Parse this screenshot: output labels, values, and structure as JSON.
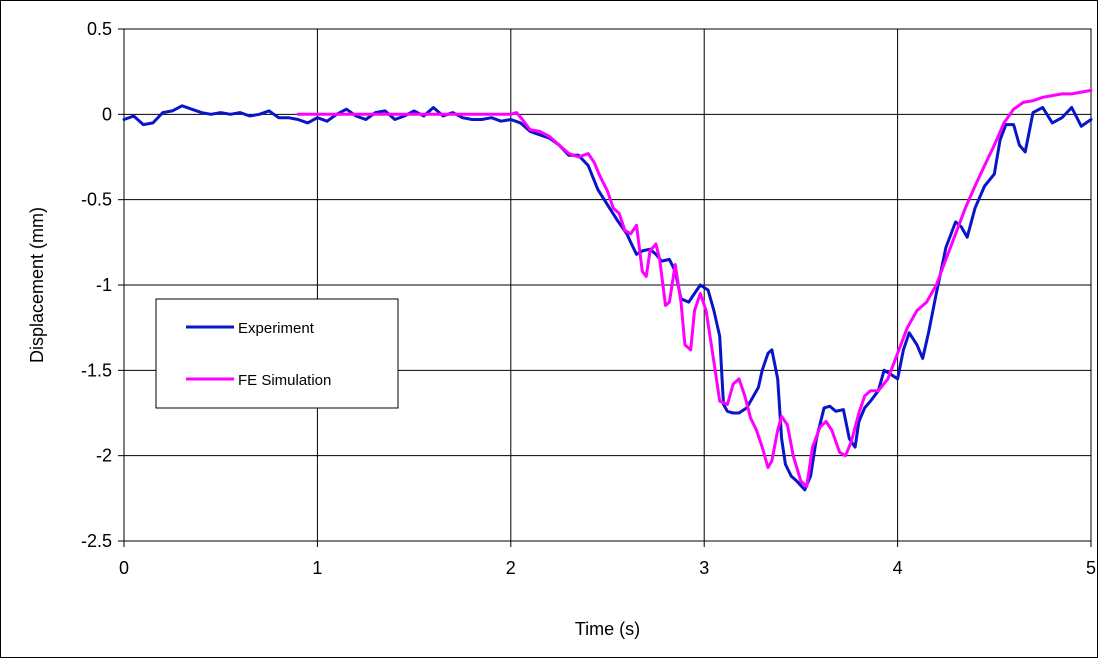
{
  "chart_data": {
    "type": "line",
    "title": "",
    "xlabel": "Time (s)",
    "ylabel": "Displacement (mm)",
    "xlim": [
      0,
      5
    ],
    "ylim": [
      -2.5,
      0.5
    ],
    "x_ticks": [
      0,
      1,
      2,
      3,
      4,
      5
    ],
    "x_tick_labels": [
      "0",
      "1",
      "2",
      "3",
      "4",
      "5"
    ],
    "y_ticks": [
      0.5,
      0,
      -0.5,
      -1,
      -1.5,
      -2,
      -2.5
    ],
    "y_tick_labels": [
      "0.5",
      "0",
      "-0.5",
      "-1",
      "-1.5",
      "-2",
      "-2.5"
    ],
    "grid": true,
    "legend_position": "center-left",
    "series": [
      {
        "name": "Experiment",
        "color": "#0a14c8",
        "x": [
          0.0,
          0.05,
          0.1,
          0.15,
          0.2,
          0.25,
          0.3,
          0.35,
          0.4,
          0.45,
          0.5,
          0.55,
          0.6,
          0.65,
          0.7,
          0.75,
          0.8,
          0.85,
          0.9,
          0.95,
          1.0,
          1.05,
          1.1,
          1.15,
          1.2,
          1.25,
          1.3,
          1.35,
          1.4,
          1.45,
          1.5,
          1.55,
          1.6,
          1.65,
          1.7,
          1.75,
          1.8,
          1.85,
          1.9,
          1.95,
          2.0,
          2.05,
          2.1,
          2.15,
          2.2,
          2.25,
          2.3,
          2.35,
          2.4,
          2.45,
          2.5,
          2.55,
          2.6,
          2.62,
          2.65,
          2.68,
          2.72,
          2.75,
          2.78,
          2.82,
          2.85,
          2.88,
          2.92,
          2.95,
          2.98,
          3.02,
          3.05,
          3.08,
          3.1,
          3.12,
          3.15,
          3.18,
          3.22,
          3.25,
          3.28,
          3.3,
          3.33,
          3.35,
          3.38,
          3.4,
          3.42,
          3.45,
          3.48,
          3.52,
          3.55,
          3.58,
          3.62,
          3.65,
          3.68,
          3.72,
          3.75,
          3.78,
          3.8,
          3.83,
          3.86,
          3.9,
          3.93,
          3.96,
          4.0,
          4.03,
          4.06,
          4.1,
          4.13,
          4.16,
          4.2,
          4.25,
          4.3,
          4.33,
          4.36,
          4.4,
          4.45,
          4.5,
          4.53,
          4.56,
          4.6,
          4.63,
          4.66,
          4.7,
          4.75,
          4.8,
          4.85,
          4.9,
          4.95,
          5.0
        ],
        "y": [
          -0.03,
          -0.01,
          -0.06,
          -0.05,
          0.01,
          0.02,
          0.05,
          0.03,
          0.01,
          0.0,
          0.01,
          0.0,
          0.01,
          -0.01,
          0.0,
          0.02,
          -0.02,
          -0.02,
          -0.03,
          -0.05,
          -0.02,
          -0.04,
          0.0,
          0.03,
          -0.01,
          -0.03,
          0.01,
          0.02,
          -0.03,
          -0.01,
          0.02,
          -0.01,
          0.04,
          -0.01,
          0.01,
          -0.02,
          -0.03,
          -0.03,
          -0.02,
          -0.04,
          -0.03,
          -0.05,
          -0.1,
          -0.12,
          -0.14,
          -0.18,
          -0.24,
          -0.24,
          -0.3,
          -0.44,
          -0.53,
          -0.62,
          -0.7,
          -0.75,
          -0.82,
          -0.8,
          -0.79,
          -0.82,
          -0.86,
          -0.85,
          -0.92,
          -1.08,
          -1.1,
          -1.05,
          -1.0,
          -1.03,
          -1.15,
          -1.3,
          -1.7,
          -1.74,
          -1.75,
          -1.75,
          -1.72,
          -1.66,
          -1.6,
          -1.5,
          -1.4,
          -1.38,
          -1.55,
          -1.9,
          -2.05,
          -2.12,
          -2.15,
          -2.2,
          -2.12,
          -1.9,
          -1.72,
          -1.71,
          -1.74,
          -1.73,
          -1.9,
          -1.95,
          -1.8,
          -1.72,
          -1.68,
          -1.62,
          -1.5,
          -1.52,
          -1.55,
          -1.38,
          -1.28,
          -1.35,
          -1.43,
          -1.28,
          -1.05,
          -0.78,
          -0.63,
          -0.66,
          -0.72,
          -0.55,
          -0.42,
          -0.35,
          -0.15,
          -0.06,
          -0.06,
          -0.18,
          -0.22,
          0.01,
          0.04,
          -0.05,
          -0.02,
          0.04,
          -0.07,
          -0.03
        ]
      },
      {
        "name": "FE Simulation",
        "color": "#ff00ff",
        "x": [
          0.9,
          1.0,
          1.2,
          1.4,
          1.6,
          1.8,
          2.0,
          2.03,
          2.06,
          2.1,
          2.15,
          2.2,
          2.25,
          2.3,
          2.35,
          2.4,
          2.43,
          2.46,
          2.5,
          2.53,
          2.56,
          2.59,
          2.62,
          2.65,
          2.68,
          2.7,
          2.72,
          2.75,
          2.77,
          2.8,
          2.82,
          2.85,
          2.88,
          2.9,
          2.93,
          2.95,
          2.98,
          3.01,
          3.05,
          3.08,
          3.12,
          3.15,
          3.18,
          3.21,
          3.24,
          3.27,
          3.3,
          3.33,
          3.35,
          3.38,
          3.4,
          3.43,
          3.46,
          3.5,
          3.53,
          3.56,
          3.6,
          3.63,
          3.66,
          3.7,
          3.73,
          3.76,
          3.8,
          3.83,
          3.86,
          3.9,
          3.95,
          4.0,
          4.05,
          4.1,
          4.15,
          4.2,
          4.25,
          4.3,
          4.35,
          4.4,
          4.45,
          4.5,
          4.55,
          4.6,
          4.65,
          4.7,
          4.75,
          4.8,
          4.85,
          4.9,
          4.95,
          5.0
        ],
        "y": [
          0.0,
          0.0,
          0.0,
          0.0,
          0.0,
          0.0,
          0.0,
          0.01,
          -0.03,
          -0.09,
          -0.1,
          -0.13,
          -0.18,
          -0.23,
          -0.25,
          -0.23,
          -0.28,
          -0.36,
          -0.45,
          -0.55,
          -0.58,
          -0.68,
          -0.7,
          -0.65,
          -0.92,
          -0.95,
          -0.8,
          -0.76,
          -0.85,
          -1.12,
          -1.1,
          -0.88,
          -1.1,
          -1.35,
          -1.38,
          -1.15,
          -1.05,
          -1.15,
          -1.45,
          -1.68,
          -1.7,
          -1.58,
          -1.55,
          -1.65,
          -1.78,
          -1.85,
          -1.95,
          -2.07,
          -2.03,
          -1.85,
          -1.77,
          -1.82,
          -2.0,
          -2.15,
          -2.18,
          -1.95,
          -1.83,
          -1.8,
          -1.85,
          -1.98,
          -2.0,
          -1.92,
          -1.75,
          -1.65,
          -1.62,
          -1.62,
          -1.55,
          -1.4,
          -1.25,
          -1.15,
          -1.1,
          -1.0,
          -0.85,
          -0.7,
          -0.55,
          -0.42,
          -0.3,
          -0.18,
          -0.05,
          0.03,
          0.07,
          0.08,
          0.1,
          0.11,
          0.12,
          0.12,
          0.13,
          0.14
        ]
      }
    ]
  }
}
